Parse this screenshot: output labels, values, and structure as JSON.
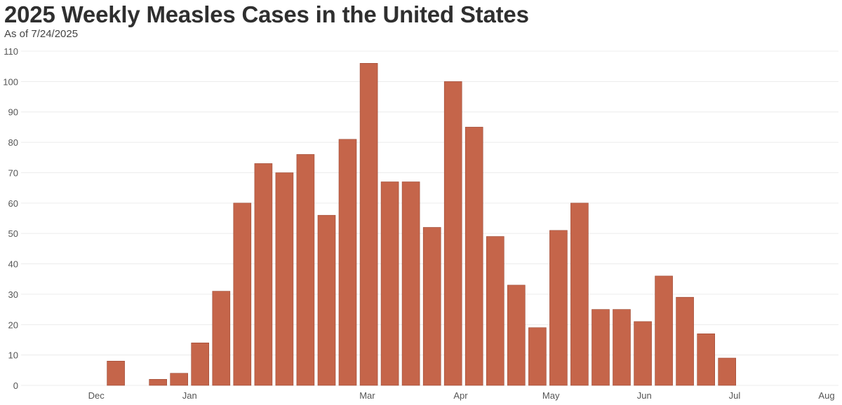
{
  "chart_data": {
    "type": "bar",
    "title": "2025 Weekly Measles Cases in the United States",
    "subtitle": "As of 7/24/2025",
    "xlabel": "",
    "ylabel": "",
    "ylim": [
      0,
      110
    ],
    "yticks": [
      0,
      10,
      20,
      30,
      40,
      50,
      60,
      70,
      80,
      90,
      100,
      110
    ],
    "grid": true,
    "x_ticks": [
      {
        "label": "Dec",
        "date": "2024-12-01"
      },
      {
        "label": "Jan",
        "date": "2025-01-01"
      },
      {
        "label": "Mar",
        "date": "2025-03-01"
      },
      {
        "label": "Apr",
        "date": "2025-04-01"
      },
      {
        "label": "May",
        "date": "2025-05-01"
      },
      {
        "label": "Jun",
        "date": "2025-06-01"
      },
      {
        "label": "Jul",
        "date": "2025-07-01"
      },
      {
        "label": "Aug",
        "date": "2025-08-01"
      }
    ],
    "weeks": [
      "2024-11-27",
      "2024-12-04",
      "2024-12-11",
      "2024-12-18",
      "2024-12-25",
      "2025-01-01",
      "2025-01-08",
      "2025-01-15",
      "2025-01-22",
      "2025-01-29",
      "2025-02-05",
      "2025-02-12",
      "2025-02-19",
      "2025-02-26",
      "2025-03-05",
      "2025-03-12",
      "2025-03-19",
      "2025-03-26",
      "2025-04-02",
      "2025-04-09",
      "2025-04-16",
      "2025-04-23",
      "2025-04-30",
      "2025-05-07",
      "2025-05-14",
      "2025-05-21",
      "2025-05-28",
      "2025-06-04",
      "2025-06-11",
      "2025-06-18",
      "2025-06-25",
      "2025-07-02",
      "2025-07-09",
      "2025-07-16",
      "2025-07-23"
    ],
    "values": [
      0,
      8,
      0,
      2,
      4,
      14,
      31,
      60,
      73,
      70,
      76,
      56,
      81,
      106,
      67,
      67,
      52,
      100,
      85,
      49,
      33,
      19,
      51,
      60,
      25,
      25,
      21,
      36,
      29,
      17,
      9,
      0,
      0,
      0,
      0
    ],
    "colors": {
      "bar": "#c5654a",
      "bar_edge": "#9d4a35",
      "grid": "#ececec",
      "text": "#555555"
    }
  }
}
